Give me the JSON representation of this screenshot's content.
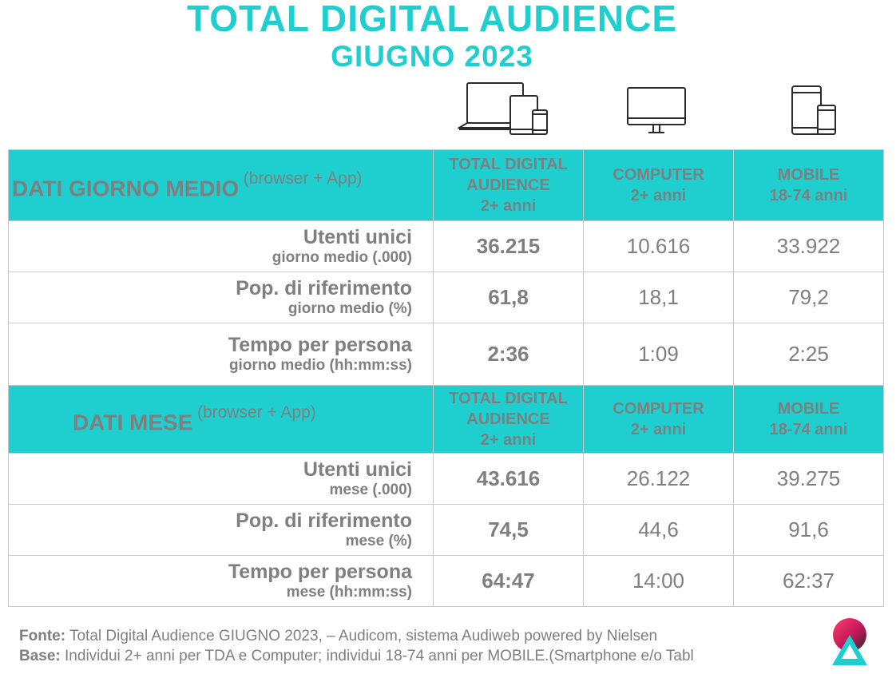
{
  "title": "TOTAL DIGITAL AUDIENCE",
  "subtitle": "GIUGNO 2023",
  "icons": [
    "devices-icon",
    "computer-monitor-icon",
    "mobile-devices-icon"
  ],
  "colors": {
    "accent": "#1fcfcf",
    "text": "#7f7f7f",
    "border": "#c8c8c8"
  },
  "columns": {
    "tda": [
      "TOTAL DIGITAL",
      "AUDIENCE",
      "2+ anni"
    ],
    "computer": [
      "COMPUTER",
      "2+ anni"
    ],
    "mobile": [
      "MOBILE",
      "18-74 anni"
    ]
  },
  "sections": [
    {
      "title": "DATI GIORNO MEDIO",
      "note": "(browser + App)",
      "rows": [
        {
          "label": "Utenti unici",
          "sublabel": "giorno medio (.000)",
          "tda": "36.215",
          "computer": "10.616",
          "mobile": "33.922"
        },
        {
          "label": "Pop. di riferimento",
          "sublabel": "giorno medio (%)",
          "tda": "61,8",
          "computer": "18,1",
          "mobile": "79,2"
        },
        {
          "label": "Tempo per persona",
          "sublabel": "giorno medio (hh:mm:ss)",
          "tda": "2:36",
          "computer": "1:09",
          "mobile": "2:25"
        }
      ]
    },
    {
      "title": "DATI MESE",
      "note": "(browser + App)",
      "rows": [
        {
          "label": "Utenti unici",
          "sublabel": "mese (.000)",
          "tda": "43.616",
          "computer": "26.122",
          "mobile": "39.275"
        },
        {
          "label": "Pop. di riferimento",
          "sublabel": "mese (%)",
          "tda": "74,5",
          "computer": "44,6",
          "mobile": "91,6"
        },
        {
          "label": "Tempo per persona",
          "sublabel": "mese (hh:mm:ss)",
          "tda": "64:47",
          "computer": "14:00",
          "mobile": "62:37"
        }
      ]
    }
  ],
  "footer": {
    "fonte_label": "Fonte:",
    "fonte_text": "Total Digital Audience GIUGNO 2023, – Audicom, sistema Audiweb powered by Nielsen",
    "base_label": "Base:",
    "base_text": "Individui 2+ anni per TDA e Computer; individui 18-74 anni per MOBILE.(Smartphone e/o Tabl"
  }
}
